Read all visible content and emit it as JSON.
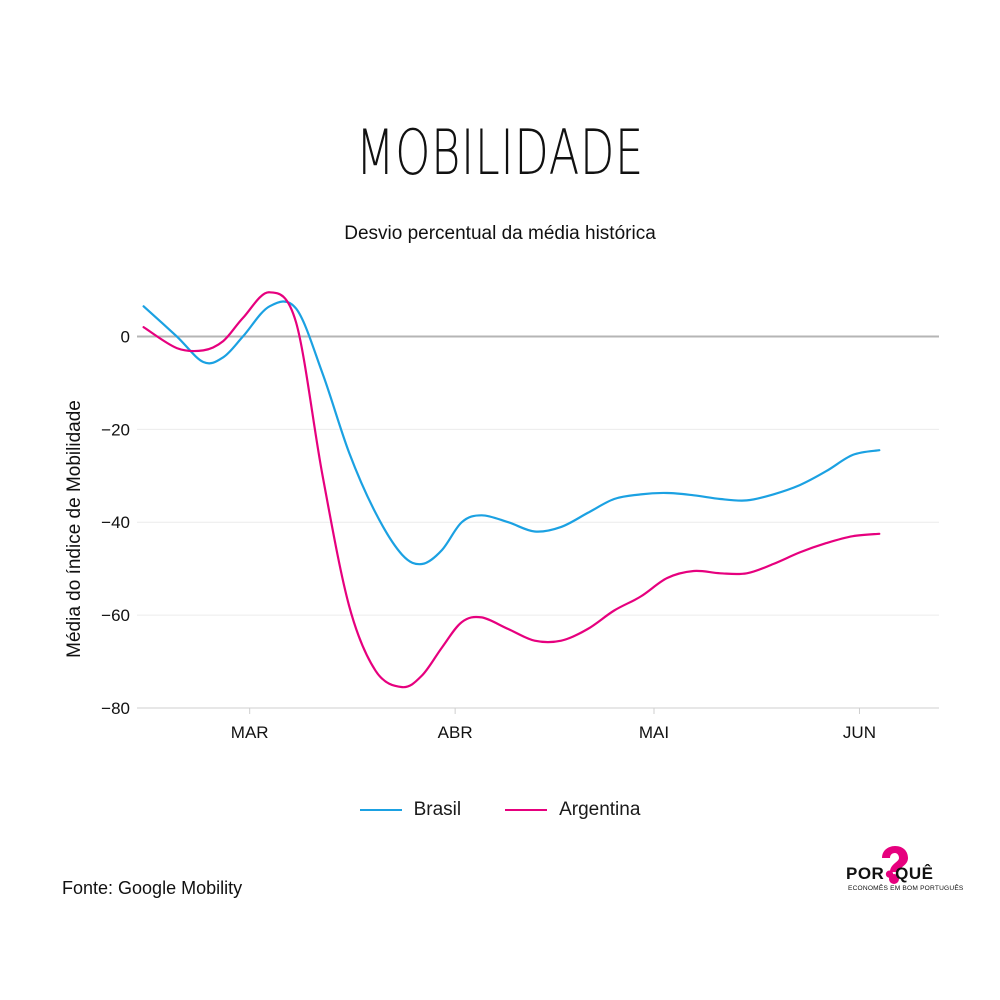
{
  "header": {
    "title": "MOBILIDADE",
    "subtitle": "Desvio percentual da média histórica"
  },
  "legend": [
    {
      "label": "Brasil",
      "color": "#1ba1e2"
    },
    {
      "label": "Argentina",
      "color": "#e6007e"
    }
  ],
  "footer": {
    "source": "Fonte: Google Mobility"
  },
  "logo": {
    "word_left": "POR",
    "word_right": "QUÊ",
    "tagline": "ECONOMÊS EM BOM PORTUGUÊS",
    "color": "#e6007e"
  },
  "chart_data": {
    "type": "line",
    "title": "MOBILIDADE",
    "subtitle": "Desvio percentual da média histórica",
    "xlabel": "",
    "ylabel": "Média do índice de Mobilidade",
    "x_unit": "day of 2020",
    "x_ticks": [
      {
        "label": "MAR",
        "x": 61
      },
      {
        "label": "ABR",
        "x": 92
      },
      {
        "label": "MAI",
        "x": 122
      },
      {
        "label": "JUN",
        "x": 153
      }
    ],
    "xlim": [
      44,
      165
    ],
    "ylim": [
      -80,
      10
    ],
    "y_ticks": [
      0,
      -20,
      -40,
      -60,
      -80
    ],
    "grid": true,
    "legend_position": "bottom-center",
    "series": [
      {
        "name": "Brasil",
        "color": "#1ba1e2",
        "x": [
          45,
          50,
          54,
          57,
          60,
          64,
          68,
          72,
          76,
          80,
          84,
          87,
          90,
          93,
          96,
          100,
          104,
          108,
          112,
          116,
          120,
          124,
          128,
          132,
          136,
          140,
          144,
          148,
          152,
          156
        ],
        "values": [
          6.5,
          0,
          -5.5,
          -4.5,
          0,
          6.5,
          6,
          -8,
          -25,
          -38,
          -47,
          -49,
          -46,
          -40,
          -38.5,
          -40,
          -42,
          -41,
          -38,
          -35,
          -34,
          -33.7,
          -34.2,
          -35,
          -35.3,
          -34,
          -32,
          -29,
          -25.5,
          -24.5
        ]
      },
      {
        "name": "Argentina",
        "color": "#e6007e",
        "x": [
          45,
          50,
          54,
          57,
          60,
          64,
          68,
          72,
          76,
          80,
          84,
          87,
          90,
          93,
          96,
          100,
          104,
          108,
          112,
          116,
          120,
          124,
          128,
          132,
          136,
          140,
          144,
          148,
          152,
          156
        ],
        "values": [
          2,
          -2.5,
          -3,
          -1,
          4,
          9.5,
          3,
          -30,
          -58,
          -72,
          -75.5,
          -73,
          -67,
          -61.5,
          -60.5,
          -63,
          -65.5,
          -65.5,
          -63,
          -59,
          -56,
          -52,
          -50.5,
          -51,
          -51,
          -49,
          -46.5,
          -44.5,
          -43,
          -42.5
        ]
      }
    ]
  }
}
